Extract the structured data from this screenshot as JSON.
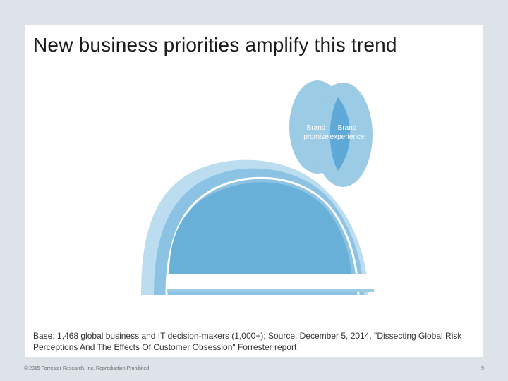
{
  "slide": {
    "title": "New business priorities amplify this trend",
    "caption": "Base: 1,468 global business and IT decision-makers (1,000+); Source: December 5, 2014, \"Dissecting Global Risk Perceptions And The Effects Of Customer Obsession\" Forrester report"
  },
  "diagram": {
    "circles": [
      {
        "line1": "Brand",
        "line2": "promise"
      },
      {
        "line1": "Brand",
        "line2": "experience"
      }
    ],
    "colors": {
      "light_blue": "#9ccbe6",
      "mid_blue": "#6aaed7",
      "overlap_blue": "#5ea9d8",
      "arch_outer": "#b9daf0",
      "dome": "#69b0d9"
    }
  },
  "footer": {
    "copyright": "© 2015 Forrester Research, Inc. Reproduction Prohibited",
    "page_number": "9"
  }
}
